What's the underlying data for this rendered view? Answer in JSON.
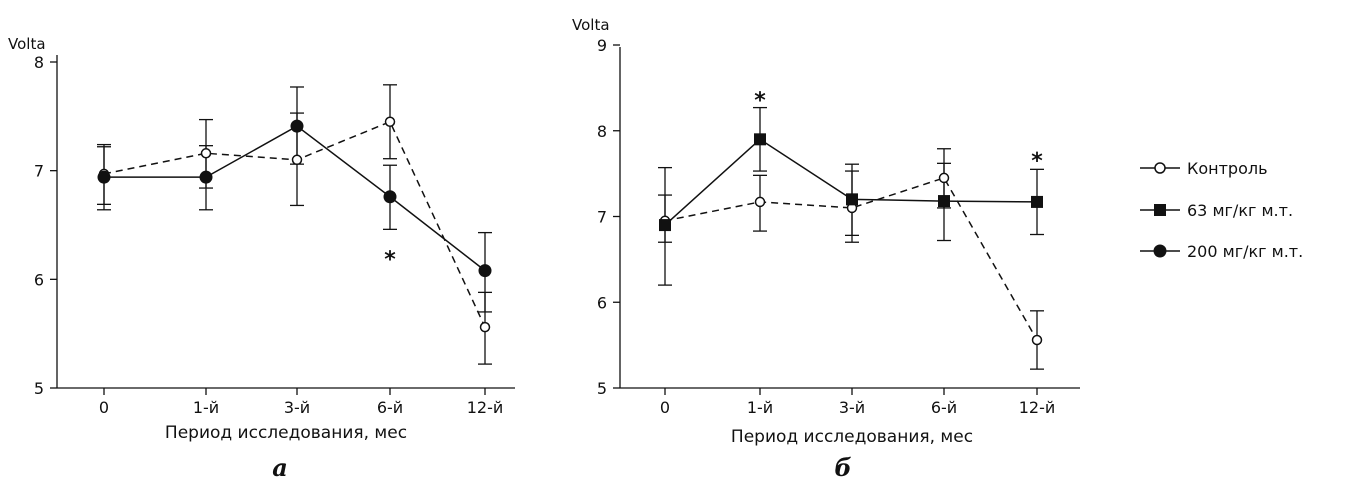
{
  "legend": [
    {
      "label": "Контроль",
      "marker": "circle-open"
    },
    {
      "label": "63 мг/кг м.т.",
      "marker": "square-filled"
    },
    {
      "label": "200 мг/кг м.т.",
      "marker": "circle-filled"
    }
  ],
  "chart_data": [
    {
      "type": "line",
      "panel_label": "а",
      "ylabel": "Volta",
      "xlabel": "Период исследования, мес",
      "categories": [
        "0",
        "1-й",
        "3-й",
        "6-й",
        "12-й"
      ],
      "ylim": [
        5,
        8
      ],
      "yticks": [
        5,
        6,
        7,
        8
      ],
      "series": [
        {
          "name": "Контроль",
          "marker": "circle-open",
          "line": "dashed",
          "values": [
            6.97,
            7.16,
            7.1,
            7.45,
            5.56
          ],
          "err_high": [
            7.24,
            7.47,
            7.53,
            7.79,
            5.88
          ],
          "err_low": [
            6.69,
            6.84,
            6.68,
            7.11,
            5.22
          ]
        },
        {
          "name": "200 мг/кг м.т.",
          "marker": "circle-filled",
          "line": "solid",
          "values": [
            6.94,
            6.94,
            7.41,
            6.76,
            6.08
          ],
          "err_high": [
            7.22,
            7.23,
            7.77,
            7.05,
            6.43
          ],
          "err_low": [
            6.64,
            6.64,
            7.06,
            6.46,
            5.7
          ]
        }
      ],
      "annotations": [
        {
          "text": "*",
          "x": "6-й",
          "y": 6.24
        }
      ]
    },
    {
      "type": "line",
      "panel_label": "б",
      "ylabel": "Volta",
      "xlabel": "Период исследования, мес",
      "categories": [
        "0",
        "1-й",
        "3-й",
        "6-й",
        "12-й"
      ],
      "ylim": [
        5,
        9
      ],
      "yticks": [
        5,
        6,
        7,
        8,
        9
      ],
      "series": [
        {
          "name": "Контроль",
          "marker": "circle-open",
          "line": "dashed",
          "values": [
            6.95,
            7.17,
            7.1,
            7.45,
            5.56
          ],
          "err_high": [
            7.25,
            7.48,
            7.53,
            7.79,
            5.9
          ],
          "err_low": [
            6.7,
            6.83,
            6.7,
            7.1,
            5.22
          ]
        },
        {
          "name": "63 мг/кг м.т.",
          "marker": "square-filled",
          "line": "solid",
          "values": [
            6.9,
            7.9,
            7.2,
            7.18,
            7.17
          ],
          "err_high": [
            7.57,
            8.27,
            7.61,
            7.62,
            7.55
          ],
          "err_low": [
            6.2,
            7.53,
            6.78,
            6.72,
            6.79
          ]
        }
      ],
      "annotations": [
        {
          "text": "*",
          "x": "1-й",
          "y": 8.42
        },
        {
          "text": "*",
          "x": "12-й",
          "y": 7.72
        }
      ]
    }
  ]
}
